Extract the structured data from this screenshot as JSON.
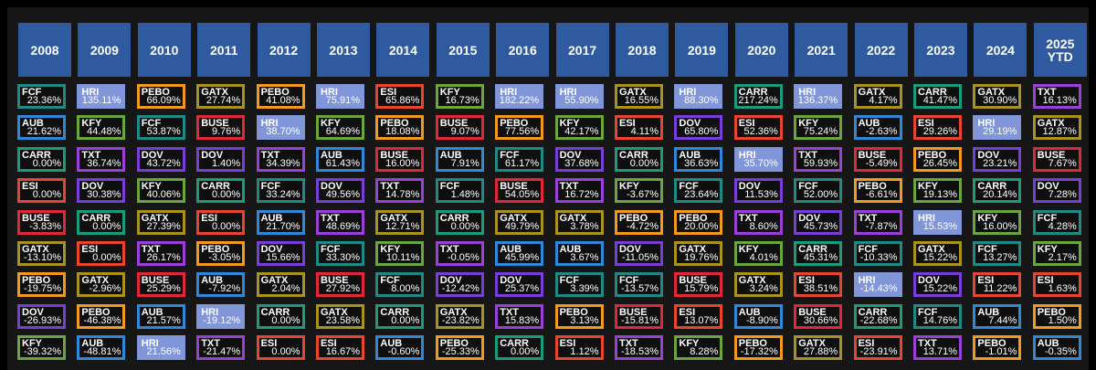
{
  "colors": {
    "FCF": "#1f8a84",
    "AUB": "#2f88d8",
    "CARR": "#1a9c7c",
    "ESI": "#e8452e",
    "BUSE": "#e0283a",
    "GATX": "#a89220",
    "PEBO": "#f29a1c",
    "DOV": "#7a3ed8",
    "KFY": "#6aa63c",
    "HRI": "#8096d8",
    "TXT": "#9a3fd8",
    "header_bg": "#2f5aa0",
    "highlight_bg": "#8096d8"
  },
  "chart_data": {
    "type": "table",
    "highlight_ticker": "HRI",
    "years": [
      "2008",
      "2009",
      "2010",
      "2011",
      "2012",
      "2013",
      "2014",
      "2015",
      "2016",
      "2017",
      "2018",
      "2019",
      "2020",
      "2021",
      "2022",
      "2023",
      "2024",
      "2025 YTD"
    ],
    "columns": [
      [
        [
          "FCF",
          "23.36%"
        ],
        [
          "AUB",
          "21.62%"
        ],
        [
          "CARR",
          "0.00%"
        ],
        [
          "ESI",
          "0.00%"
        ],
        [
          "BUSE",
          "-3.83%"
        ],
        [
          "GATX",
          "-13.10%"
        ],
        [
          "PEBO",
          "-19.75%"
        ],
        [
          "DOV",
          "-26.93%"
        ],
        [
          "KFY",
          "-39.32%"
        ]
      ],
      [
        [
          "HRI",
          "135.11%"
        ],
        [
          "KFY",
          "44.48%"
        ],
        [
          "TXT",
          "36.74%"
        ],
        [
          "DOV",
          "30.38%"
        ],
        [
          "CARR",
          "0.00%"
        ],
        [
          "ESI",
          "0.00%"
        ],
        [
          "GATX",
          "-2.96%"
        ],
        [
          "PEBO",
          "-46.38%"
        ],
        [
          "AUB",
          "-48.81%"
        ]
      ],
      [
        [
          "PEBO",
          "66.09%"
        ],
        [
          "FCF",
          "53.87%"
        ],
        [
          "DOV",
          "43.72%"
        ],
        [
          "KFY",
          "40.06%"
        ],
        [
          "GATX",
          "27.39%"
        ],
        [
          "TXT",
          "26.17%"
        ],
        [
          "BUSE",
          "25.29%"
        ],
        [
          "AUB",
          "21.57%"
        ],
        [
          "HRI",
          "21.56%"
        ]
      ],
      [
        [
          "GATX",
          "27.74%"
        ],
        [
          "BUSE",
          "9.76%"
        ],
        [
          "DOV",
          "1.40%"
        ],
        [
          "CARR",
          "0.00%"
        ],
        [
          "ESI",
          "0.00%"
        ],
        [
          "PEBO",
          "-3.05%"
        ],
        [
          "AUB",
          "-7.92%"
        ],
        [
          "HRI",
          "-19.12%"
        ],
        [
          "TXT",
          "-21.47%"
        ]
      ],
      [
        [
          "PEBO",
          "41.08%"
        ],
        [
          "HRI",
          "38.70%"
        ],
        [
          "TXT",
          "34.39%"
        ],
        [
          "FCF",
          "33.24%"
        ],
        [
          "AUB",
          "21.70%"
        ],
        [
          "DOV",
          "15.66%"
        ],
        [
          "GATX",
          "2.04%"
        ],
        [
          "CARR",
          "0.00%"
        ],
        [
          "ESI",
          "0.00%"
        ]
      ],
      [
        [
          "HRI",
          "75.91%"
        ],
        [
          "KFY",
          "64.69%"
        ],
        [
          "AUB",
          "61.43%"
        ],
        [
          "DOV",
          "49.56%"
        ],
        [
          "TXT",
          "48.69%"
        ],
        [
          "FCF",
          "33.30%"
        ],
        [
          "BUSE",
          "27.92%"
        ],
        [
          "GATX",
          "23.58%"
        ],
        [
          "ESI",
          "16.67%"
        ]
      ],
      [
        [
          "ESI",
          "65.86%"
        ],
        [
          "PEBO",
          "18.08%"
        ],
        [
          "BUSE",
          "16.00%"
        ],
        [
          "TXT",
          "14.78%"
        ],
        [
          "GATX",
          "12.71%"
        ],
        [
          "KFY",
          "10.11%"
        ],
        [
          "FCF",
          "8.00%"
        ],
        [
          "CARR",
          "0.00%"
        ],
        [
          "AUB",
          "-0.60%"
        ]
      ],
      [
        [
          "KFY",
          "16.73%"
        ],
        [
          "BUSE",
          "9.07%"
        ],
        [
          "AUB",
          "7.91%"
        ],
        [
          "FCF",
          "1.48%"
        ],
        [
          "CARR",
          "0.00%"
        ],
        [
          "TXT",
          "-0.05%"
        ],
        [
          "DOV",
          "-12.42%"
        ],
        [
          "GATX",
          "-23.82%"
        ],
        [
          "PEBO",
          "-25.33%"
        ]
      ],
      [
        [
          "HRI",
          "182.22%"
        ],
        [
          "PEBO",
          "77.56%"
        ],
        [
          "FCF",
          "61.17%"
        ],
        [
          "BUSE",
          "54.05%"
        ],
        [
          "GATX",
          "49.79%"
        ],
        [
          "AUB",
          "45.99%"
        ],
        [
          "DOV",
          "25.37%"
        ],
        [
          "TXT",
          "15.83%"
        ],
        [
          "CARR",
          "0.00%"
        ]
      ],
      [
        [
          "HRI",
          "55.90%"
        ],
        [
          "KFY",
          "42.17%"
        ],
        [
          "DOV",
          "37.68%"
        ],
        [
          "TXT",
          "16.72%"
        ],
        [
          "GATX",
          "3.78%"
        ],
        [
          "AUB",
          "3.67%"
        ],
        [
          "FCF",
          "3.39%"
        ],
        [
          "PEBO",
          "3.13%"
        ],
        [
          "ESI",
          "1.12%"
        ]
      ],
      [
        [
          "GATX",
          "16.55%"
        ],
        [
          "ESI",
          "4.11%"
        ],
        [
          "CARR",
          "0.00%"
        ],
        [
          "KFY",
          "-3.67%"
        ],
        [
          "PEBO",
          "-4.72%"
        ],
        [
          "DOV",
          "-11.05%"
        ],
        [
          "FCF",
          "-13.57%"
        ],
        [
          "BUSE",
          "-15.81%"
        ],
        [
          "TXT",
          "-18.53%"
        ]
      ],
      [
        [
          "HRI",
          "88.30%"
        ],
        [
          "DOV",
          "65.80%"
        ],
        [
          "AUB",
          "36.63%"
        ],
        [
          "FCF",
          "23.64%"
        ],
        [
          "PEBO",
          "20.00%"
        ],
        [
          "GATX",
          "19.76%"
        ],
        [
          "BUSE",
          "15.79%"
        ],
        [
          "ESI",
          "13.07%"
        ],
        [
          "KFY",
          "8.28%"
        ]
      ],
      [
        [
          "CARR",
          "217.24%"
        ],
        [
          "ESI",
          "52.36%"
        ],
        [
          "HRI",
          "35.70%"
        ],
        [
          "DOV",
          "11.53%"
        ],
        [
          "TXT",
          "8.60%"
        ],
        [
          "KFY",
          "4.01%"
        ],
        [
          "GATX",
          "3.24%"
        ],
        [
          "AUB",
          "-8.90%"
        ],
        [
          "PEBO",
          "-17.32%"
        ]
      ],
      [
        [
          "HRI",
          "136.37%"
        ],
        [
          "KFY",
          "75.24%"
        ],
        [
          "TXT",
          "59.93%"
        ],
        [
          "FCF",
          "52.00%"
        ],
        [
          "DOV",
          "45.73%"
        ],
        [
          "CARR",
          "45.31%"
        ],
        [
          "ESI",
          "38.51%"
        ],
        [
          "BUSE",
          "30.66%"
        ],
        [
          "GATX",
          "27.88%"
        ]
      ],
      [
        [
          "GATX",
          "4.17%"
        ],
        [
          "AUB",
          "-2.63%"
        ],
        [
          "BUSE",
          "-5.49%"
        ],
        [
          "PEBO",
          "-6.61%"
        ],
        [
          "TXT",
          "-7.87%"
        ],
        [
          "FCF",
          "-10.33%"
        ],
        [
          "HRI",
          "-14.43%"
        ],
        [
          "CARR",
          "-22.68%"
        ],
        [
          "ESI",
          "-23.91%"
        ]
      ],
      [
        [
          "CARR",
          "41.47%"
        ],
        [
          "ESI",
          "29.26%"
        ],
        [
          "PEBO",
          "26.45%"
        ],
        [
          "KFY",
          "19.13%"
        ],
        [
          "HRI",
          "15.53%"
        ],
        [
          "GATX",
          "15.22%"
        ],
        [
          "DOV",
          "15.22%"
        ],
        [
          "FCF",
          "14.76%"
        ],
        [
          "TXT",
          "13.71%"
        ]
      ],
      [
        [
          "GATX",
          "30.90%"
        ],
        [
          "HRI",
          "29.19%"
        ],
        [
          "DOV",
          "23.21%"
        ],
        [
          "CARR",
          "20.14%"
        ],
        [
          "KFY",
          "16.00%"
        ],
        [
          "FCF",
          "13.27%"
        ],
        [
          "ESI",
          "11.22%"
        ],
        [
          "AUB",
          "7.44%"
        ],
        [
          "PEBO",
          "-1.01%"
        ]
      ],
      [
        [
          "TXT",
          "16.13%"
        ],
        [
          "GATX",
          "12.87%"
        ],
        [
          "BUSE",
          "7.67%"
        ],
        [
          "DOV",
          "7.28%"
        ],
        [
          "FCF",
          "4.28%"
        ],
        [
          "KFY",
          "2.17%"
        ],
        [
          "ESI",
          "1.63%"
        ],
        [
          "PEBO",
          "1.50%"
        ],
        [
          "AUB",
          "-0.35%"
        ]
      ]
    ]
  }
}
